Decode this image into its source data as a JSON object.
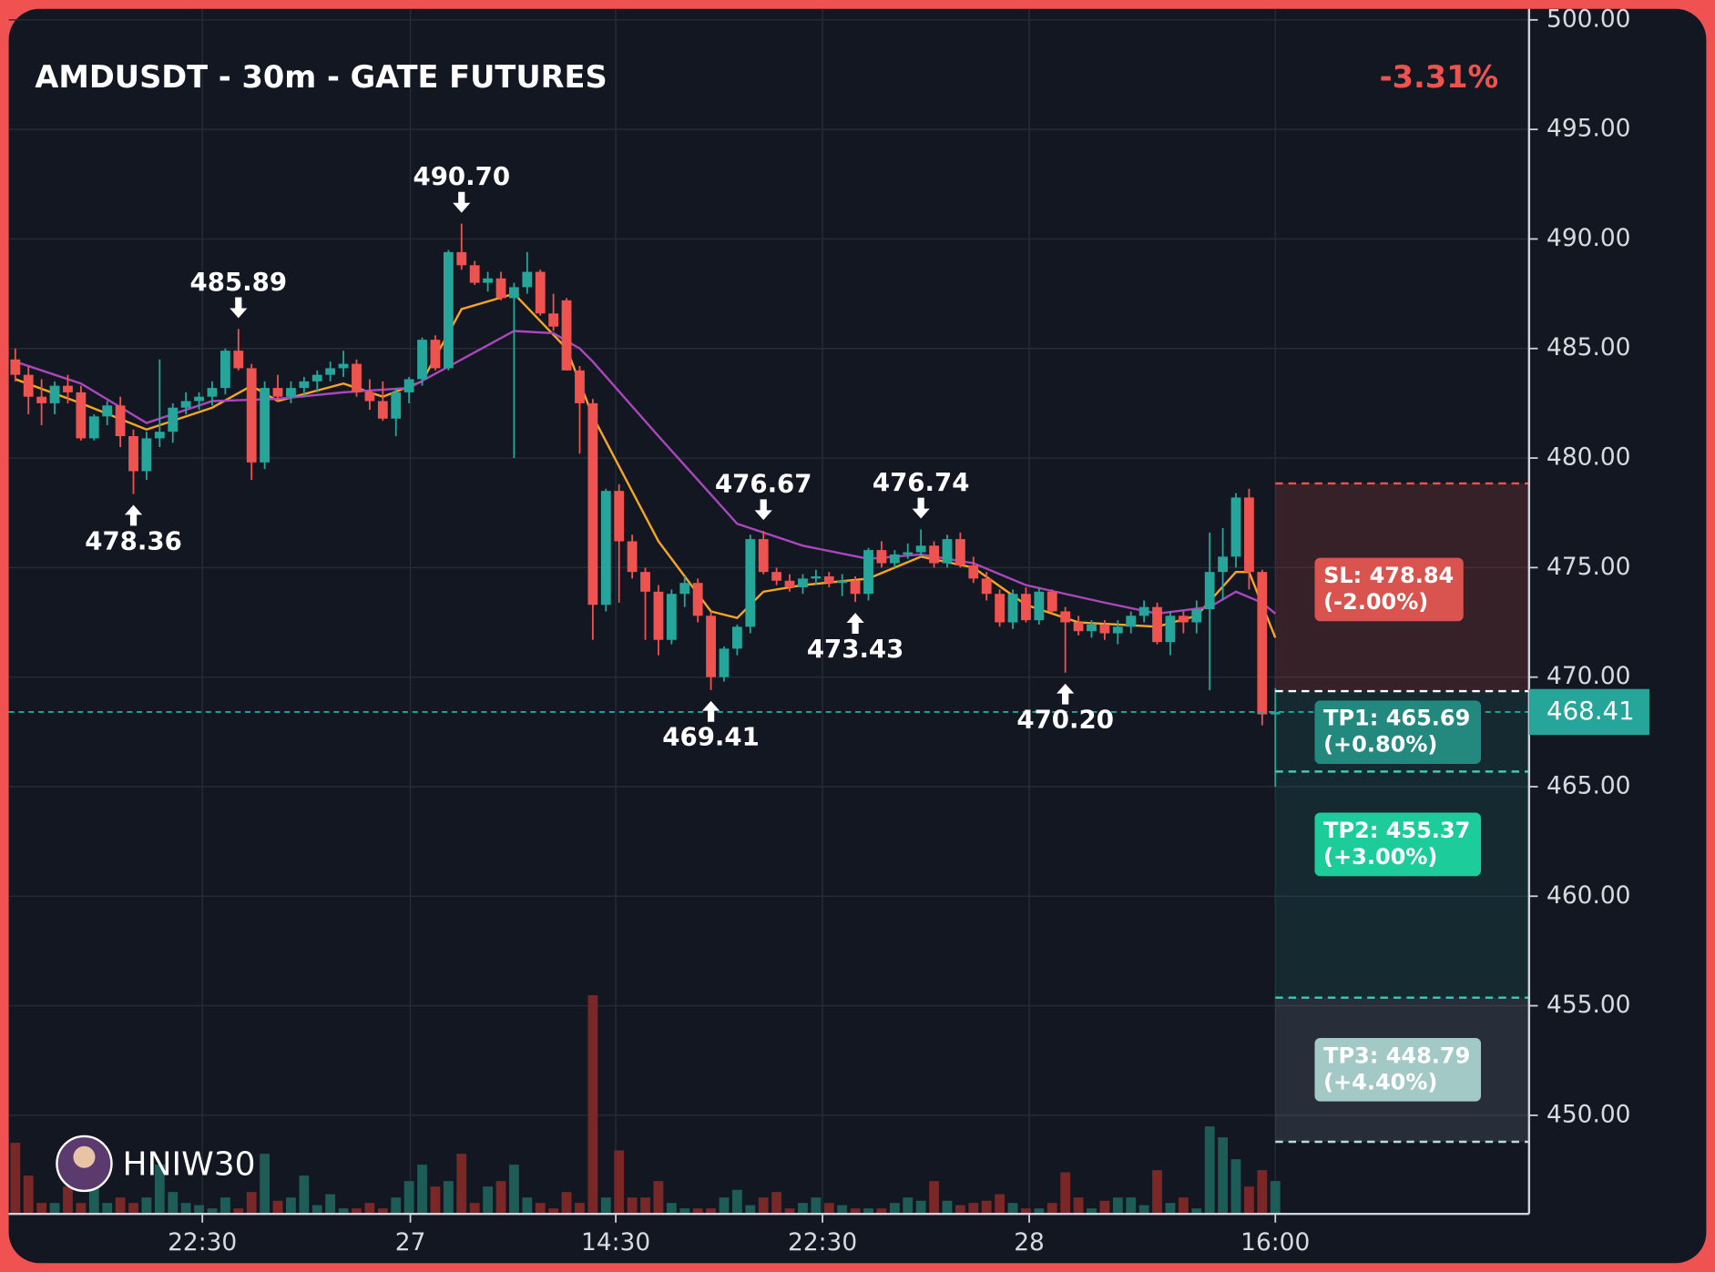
{
  "chart_data": {
    "type": "candlestick",
    "title": "AMDUSDT - 30m - GATE FUTURES",
    "change": "-3.31%",
    "watermark": "HNIW30",
    "up_color": "#26a69a",
    "down_color": "#ef5350",
    "open": [
      484.5,
      483.8,
      482.8,
      482.5,
      483.3,
      483.0,
      480.9,
      481.9,
      482.4,
      481.0,
      479.4,
      480.9,
      481.2,
      482.3,
      482.6,
      482.8,
      483.2,
      484.9,
      484.1,
      479.8,
      483.2,
      482.8,
      483.2,
      483.5,
      483.8,
      484.1,
      484.3,
      483.0,
      482.6,
      481.8,
      483.0,
      483.6,
      485.4,
      484.1,
      489.4,
      488.8,
      488.0,
      488.2,
      487.3,
      487.8,
      488.5,
      486.6,
      487.2,
      484.0,
      482.5,
      473.3,
      478.5,
      476.2,
      474.8,
      473.9,
      471.7,
      473.8,
      474.3,
      472.8,
      470.0,
      471.3,
      472.3,
      476.3,
      474.8,
      474.4,
      474.1,
      474.5,
      474.6,
      474.3,
      474.4,
      473.8,
      475.8,
      475.2,
      475.6,
      475.7,
      476.0,
      475.2,
      476.3,
      475.1,
      474.5,
      473.8,
      472.5,
      473.8,
      472.6,
      473.9,
      473.0,
      472.5,
      472.1,
      472.4,
      472.0,
      472.3,
      472.8,
      473.2,
      471.6,
      472.8,
      472.5,
      473.1,
      474.8,
      475.5,
      478.2,
      474.8,
      468.3
    ],
    "high": [
      485.0,
      484.2,
      483.6,
      483.5,
      483.8,
      483.3,
      482.0,
      482.6,
      482.8,
      481.3,
      481.2,
      484.5,
      482.5,
      483.0,
      483.0,
      483.5,
      485.0,
      485.89,
      484.3,
      483.5,
      483.8,
      483.5,
      483.7,
      484.0,
      484.4,
      484.9,
      484.5,
      483.6,
      483.5,
      483.2,
      483.7,
      485.5,
      485.6,
      489.5,
      490.7,
      489.0,
      488.5,
      488.5,
      488.0,
      489.4,
      488.6,
      487.5,
      487.3,
      484.2,
      482.7,
      478.6,
      478.8,
      476.5,
      475.0,
      474.2,
      474.0,
      474.6,
      474.5,
      473.0,
      471.4,
      472.4,
      476.5,
      476.67,
      475.0,
      474.7,
      474.7,
      474.9,
      474.8,
      474.7,
      474.6,
      475.9,
      476.2,
      475.8,
      476.1,
      476.74,
      476.2,
      476.5,
      476.6,
      475.5,
      474.8,
      474.0,
      474.0,
      474.1,
      474.1,
      474.0,
      473.2,
      472.8,
      472.6,
      472.6,
      472.6,
      473.0,
      473.5,
      473.4,
      473.0,
      473.0,
      473.5,
      476.6,
      476.8,
      478.4,
      478.6,
      474.9,
      469.5
    ],
    "low": [
      483.5,
      482.0,
      481.5,
      482.0,
      482.5,
      480.8,
      480.8,
      481.5,
      480.5,
      478.36,
      479.0,
      480.5,
      480.7,
      482.0,
      482.2,
      482.4,
      482.9,
      484.0,
      479.0,
      479.5,
      482.6,
      482.5,
      482.8,
      483.0,
      483.5,
      483.7,
      482.8,
      482.2,
      481.7,
      481.0,
      482.5,
      483.3,
      484.0,
      484.0,
      488.6,
      487.9,
      487.6,
      487.2,
      480.0,
      487.5,
      486.5,
      485.8,
      484.0,
      480.2,
      471.7,
      473.0,
      473.4,
      474.5,
      471.7,
      471.0,
      471.5,
      473.2,
      472.5,
      469.41,
      469.8,
      471.0,
      472.0,
      474.7,
      474.2,
      473.9,
      473.8,
      474.2,
      474.1,
      473.7,
      473.43,
      473.5,
      475.0,
      475.0,
      475.4,
      475.5,
      475.0,
      475.0,
      475.0,
      474.3,
      473.5,
      472.3,
      472.2,
      472.5,
      472.4,
      472.9,
      470.2,
      471.9,
      471.8,
      471.7,
      471.5,
      472.0,
      472.5,
      471.5,
      471.0,
      472.0,
      472.0,
      469.4,
      473.5,
      475.0,
      474.0,
      467.8,
      465.0
    ],
    "close": [
      483.8,
      482.8,
      482.5,
      483.3,
      483.0,
      480.9,
      481.9,
      482.4,
      481.0,
      479.4,
      480.9,
      481.2,
      482.3,
      482.6,
      482.8,
      483.2,
      484.9,
      484.1,
      479.8,
      483.2,
      482.8,
      483.2,
      483.5,
      483.8,
      484.1,
      484.3,
      483.0,
      482.6,
      481.8,
      483.0,
      483.6,
      485.4,
      484.1,
      489.4,
      488.8,
      488.0,
      488.2,
      487.3,
      487.8,
      488.5,
      486.6,
      486.0,
      484.0,
      482.5,
      473.3,
      478.5,
      476.2,
      474.8,
      473.9,
      471.7,
      473.8,
      474.3,
      472.8,
      470.0,
      471.3,
      472.3,
      476.3,
      474.8,
      474.4,
      474.1,
      474.5,
      474.6,
      474.3,
      474.4,
      473.8,
      475.8,
      475.2,
      475.6,
      475.7,
      476.0,
      475.2,
      476.3,
      475.1,
      474.5,
      473.8,
      472.5,
      473.8,
      472.6,
      473.9,
      473.0,
      472.5,
      472.1,
      472.4,
      472.0,
      472.3,
      472.8,
      473.2,
      471.6,
      472.8,
      472.5,
      473.1,
      474.8,
      475.5,
      478.2,
      474.8,
      468.3,
      468.41
    ],
    "volume": [
      65,
      35,
      10,
      10,
      25,
      10,
      40,
      10,
      15,
      10,
      15,
      45,
      20,
      10,
      8,
      5,
      15,
      5,
      20,
      55,
      12,
      15,
      35,
      8,
      18,
      5,
      5,
      10,
      5,
      15,
      30,
      45,
      25,
      30,
      55,
      10,
      25,
      30,
      45,
      15,
      10,
      5,
      20,
      10,
      200,
      15,
      58,
      15,
      15,
      30,
      10,
      5,
      5,
      5,
      15,
      22,
      8,
      15,
      20,
      5,
      10,
      15,
      10,
      8,
      5,
      5,
      5,
      10,
      15,
      12,
      30,
      12,
      8,
      10,
      12,
      18,
      10,
      5,
      5,
      10,
      38,
      15,
      5,
      12,
      15,
      15,
      8,
      40,
      10,
      15,
      5,
      80,
      70,
      50,
      25,
      40,
      30
    ],
    "lines": [
      {
        "color": "#f5a623",
        "x": [
          0,
          5,
          10,
          15,
          18,
          20,
          25,
          28,
          31,
          34,
          38,
          42,
          44,
          49,
          53,
          55,
          57,
          60,
          65,
          69,
          73,
          77,
          81,
          87,
          90,
          93,
          94,
          96
        ],
        "values": [
          483.6,
          482.5,
          481.3,
          482.3,
          483.3,
          482.6,
          483.4,
          482.8,
          483.5,
          486.8,
          487.5,
          485.0,
          481.9,
          476.2,
          473.0,
          472.7,
          473.9,
          474.2,
          474.5,
          475.5,
          475.0,
          473.3,
          472.5,
          472.3,
          472.8,
          474.8,
          474.8,
          471.8
        ]
      },
      {
        "color": "#ab47bc",
        "x": [
          0,
          5,
          10,
          15,
          20,
          25,
          30,
          34,
          38,
          41,
          43,
          44,
          49,
          55,
          60,
          65,
          69,
          73,
          77,
          83,
          87,
          91,
          93,
          95,
          96
        ],
        "values": [
          484.4,
          483.4,
          481.6,
          482.6,
          482.7,
          483.0,
          483.2,
          484.5,
          485.8,
          485.7,
          485.0,
          484.4,
          481.0,
          477.0,
          476.0,
          475.4,
          475.6,
          475.2,
          474.2,
          473.4,
          472.9,
          473.2,
          473.9,
          473.4,
          472.9
        ]
      }
    ],
    "annotations": [
      {
        "index": 9,
        "value": 478.36,
        "label": "478.36",
        "side": "below"
      },
      {
        "index": 17,
        "value": 485.89,
        "label": "485.89",
        "side": "above"
      },
      {
        "index": 34,
        "value": 490.7,
        "label": "490.70",
        "side": "above"
      },
      {
        "index": 53,
        "value": 469.41,
        "label": "469.41",
        "side": "below"
      },
      {
        "index": 57,
        "value": 476.67,
        "label": "476.67",
        "side": "above"
      },
      {
        "index": 64,
        "value": 473.43,
        "label": "473.43",
        "side": "below"
      },
      {
        "index": 69,
        "value": 476.74,
        "label": "476.74",
        "side": "above"
      },
      {
        "index": 80,
        "value": 470.2,
        "label": "470.20",
        "side": "below"
      }
    ],
    "entry": 469.36,
    "last_price": {
      "value": 468.41,
      "label": "468.41"
    },
    "levels": [
      {
        "label": "SL: 478.84",
        "sublabel": "(-2.00%)",
        "value": 478.84,
        "color": "#d9534f",
        "line": "#ef5350"
      },
      {
        "label": "TP1: 465.69",
        "sublabel": "(+0.80%)",
        "value": 465.69,
        "color": "#23897e",
        "line": "#3ccbb4"
      },
      {
        "label": "TP2: 455.37",
        "sublabel": "(+3.00%)",
        "value": 455.37,
        "color": "#1dcc9b",
        "line": "#3ccbb4"
      },
      {
        "label": "TP3: 448.79",
        "sublabel": "(+4.40%)",
        "value": 448.79,
        "color": "#a3c9c6",
        "line": "#b8dcd8"
      }
    ],
    "ylim": [
      445.5,
      500.9
    ],
    "yticks": [
      {
        "value": 450,
        "label": "450.00"
      },
      {
        "value": 455,
        "label": "455.00"
      },
      {
        "value": 460,
        "label": "460.00"
      },
      {
        "value": 465,
        "label": "465.00"
      },
      {
        "value": 470,
        "label": "470.00"
      },
      {
        "value": 475,
        "label": "475.00"
      },
      {
        "value": 480,
        "label": "480.00"
      },
      {
        "value": 485,
        "label": "485.00"
      },
      {
        "value": 490,
        "label": "490.00"
      },
      {
        "value": 495,
        "label": "495.00"
      },
      {
        "value": 500,
        "label": "500.00"
      }
    ],
    "xticks": [
      {
        "value": 14.25,
        "label": "22:30"
      },
      {
        "value": 30.1,
        "label": "27"
      },
      {
        "value": 45.75,
        "label": "14:30"
      },
      {
        "value": 61.5,
        "label": "22:30"
      },
      {
        "value": 77.25,
        "label": "28"
      },
      {
        "value": 96,
        "label": "16:00"
      }
    ],
    "grid": true
  }
}
